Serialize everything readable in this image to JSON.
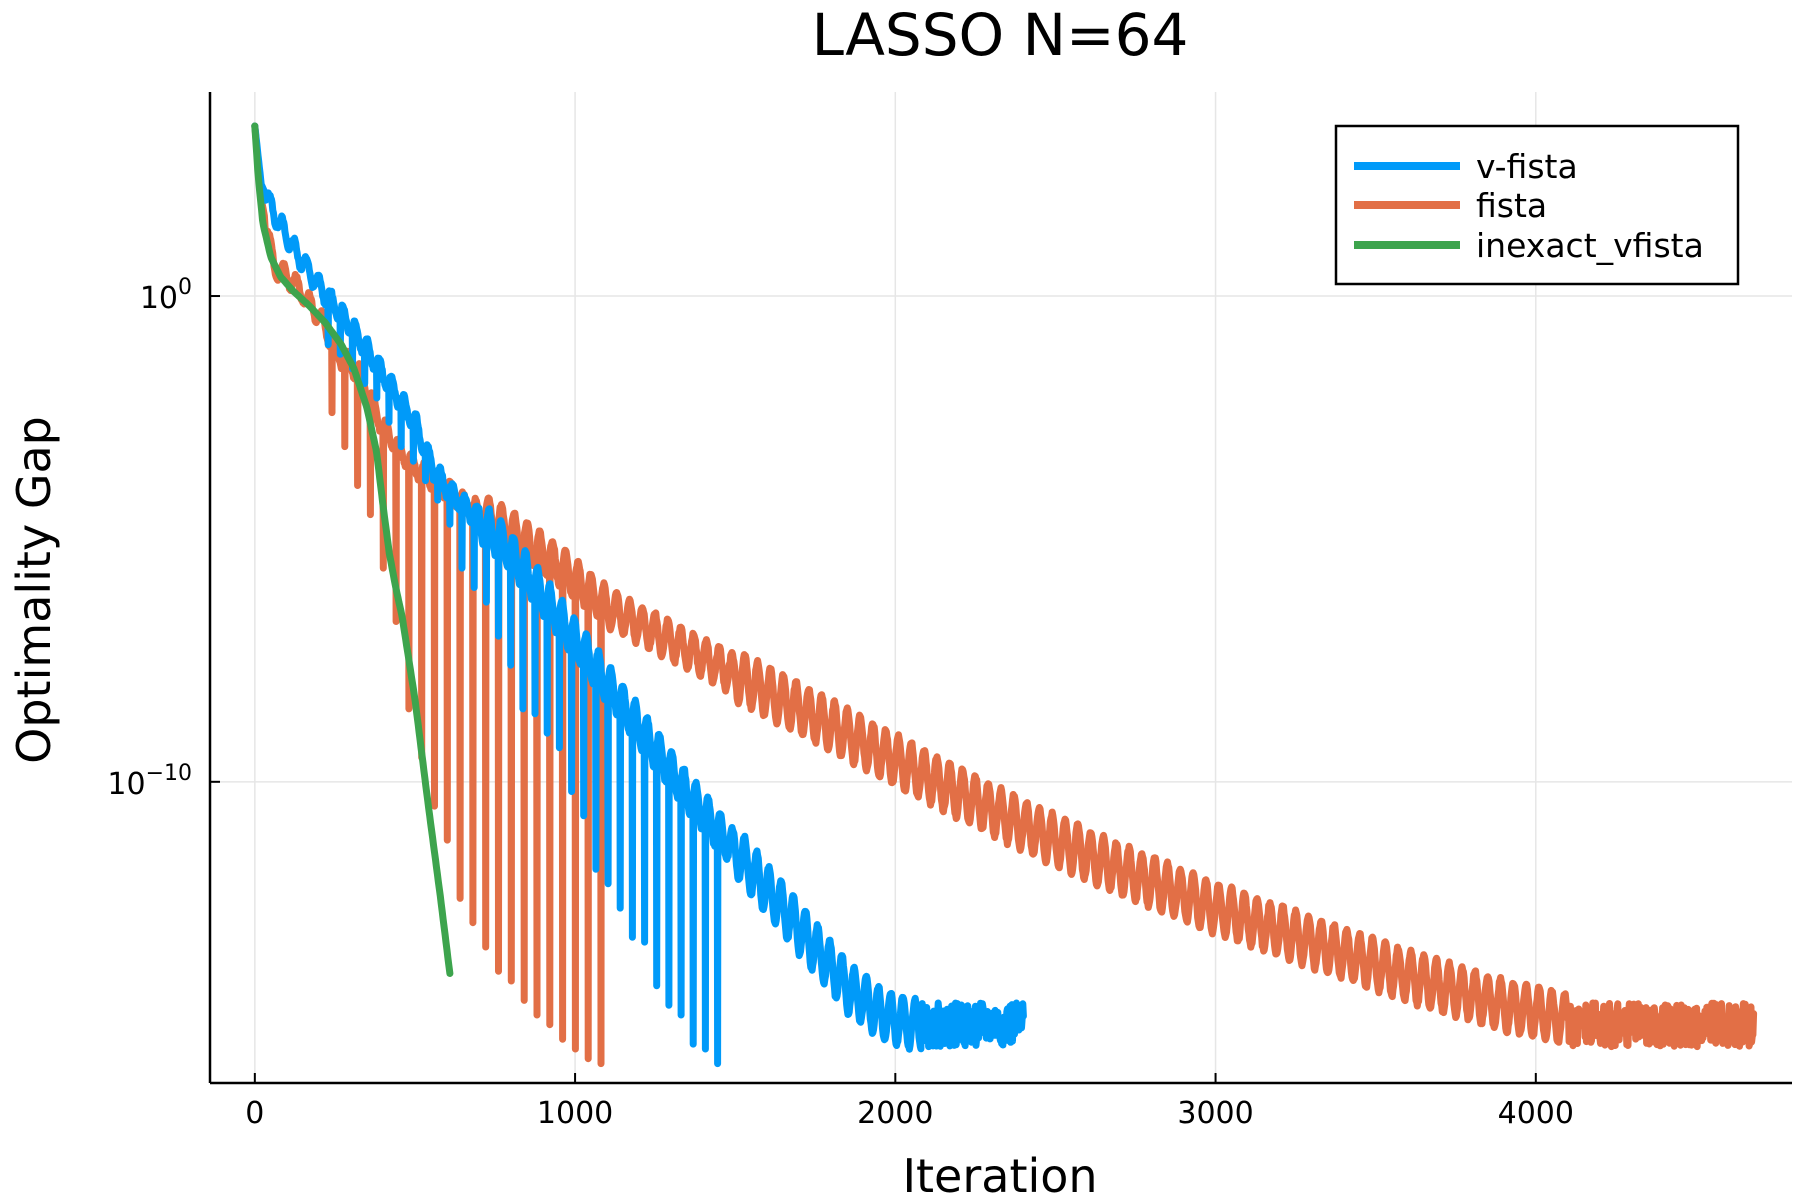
{
  "chart_data": {
    "type": "line",
    "title": "LASSO N=64",
    "xlabel": "Iteration",
    "ylabel": "Optimality Gap",
    "y_scale": "log",
    "xlim": [
      -140,
      4800
    ],
    "ylim_log10": [
      -16.2,
      4.2
    ],
    "xticks": [
      {
        "value": 0,
        "label": "0"
      },
      {
        "value": 1000,
        "label": "1000"
      },
      {
        "value": 2000,
        "label": "2000"
      },
      {
        "value": 3000,
        "label": "3000"
      },
      {
        "value": 4000,
        "label": "4000"
      }
    ],
    "yticks": [
      {
        "log10": 0,
        "base": "10",
        "exp": "0"
      },
      {
        "log10": -10,
        "base": "10",
        "exp": "−10"
      }
    ],
    "grid": true,
    "legend_position": "top-right",
    "series": [
      {
        "name": "v-fista",
        "color": "#009af9",
        "oscillating": true,
        "x": [
          0,
          20,
          60,
          120,
          200,
          300,
          400,
          500,
          560,
          620,
          700,
          780,
          860,
          960,
          1060,
          1160,
          1260,
          1360,
          1460,
          1560,
          1660,
          1760,
          1860,
          1960,
          2060,
          2160,
          2260,
          2400
        ],
        "log10_y": [
          3.5,
          2.3,
          1.7,
          1.0,
          0.2,
          -0.6,
          -1.6,
          -2.6,
          -3.6,
          -4.1,
          -4.6,
          -5.1,
          -5.8,
          -6.7,
          -7.6,
          -8.5,
          -9.4,
          -10.3,
          -11.1,
          -11.9,
          -12.7,
          -13.5,
          -14.3,
          -14.8,
          -15.0,
          -15.0,
          -15.0,
          -15.0
        ],
        "dips_log10": [
          -1,
          -1.2,
          -1.5,
          -1.8,
          -2.1,
          -2.6,
          -3.1,
          -3.4,
          -3.8,
          -4.2,
          -4.7,
          -5.6,
          -6.0,
          -6.3,
          -7.0,
          -7.6,
          -8.5,
          -8.6,
          -9.0,
          -9.3,
          -10.2,
          -10.7,
          -11.8,
          -12.1,
          -12.6,
          -13.2,
          -13.3,
          -14.2,
          -14.6,
          -14.8,
          -15.4,
          -15.5,
          -15.8
        ]
      },
      {
        "name": "fista",
        "color": "#e26f46",
        "oscillating": true,
        "x": [
          0,
          20,
          60,
          120,
          200,
          260,
          330,
          400,
          480,
          560,
          640,
          740,
          840,
          960,
          1100,
          1300,
          1500,
          1700,
          1900,
          2100,
          2400,
          2700,
          3000,
          3300,
          3600,
          3900,
          4100,
          4300,
          4680
        ],
        "log10_y": [
          3.5,
          2.0,
          0.6,
          0.3,
          -0.4,
          -1.2,
          -1.6,
          -2.7,
          -3.4,
          -3.8,
          -4.2,
          -4.6,
          -5.0,
          -5.6,
          -6.4,
          -7.1,
          -7.8,
          -8.5,
          -9.2,
          -9.9,
          -10.9,
          -11.8,
          -12.6,
          -13.3,
          -14.0,
          -14.6,
          -14.9,
          -15.0,
          -15.0
        ],
        "dips_log10": [
          -2.4,
          -3.1,
          -3.9,
          -4.5,
          -5.6,
          -6.7,
          -8.5,
          -9.5,
          -10.5,
          -11.2,
          -12.4,
          -12.9,
          -13.4,
          -13.9,
          -14.1,
          -14.5,
          -14.8,
          -15.0,
          -15.3,
          -15.5,
          -15.7,
          -15.8
        ]
      },
      {
        "name": "inexact_vfista",
        "color": "#3da44d",
        "oscillating": false,
        "x": [
          0,
          10,
          25,
          50,
          80,
          120,
          170,
          220,
          270,
          310,
          350,
          380,
          400,
          420,
          440,
          460,
          500,
          540,
          580,
          610
        ],
        "log10_y": [
          3.5,
          2.5,
          1.5,
          0.8,
          0.4,
          0.1,
          -0.2,
          -0.55,
          -1.0,
          -1.5,
          -2.3,
          -3.2,
          -4.3,
          -5.3,
          -6.0,
          -6.6,
          -8.3,
          -10.4,
          -12.4,
          -14.0
        ]
      }
    ]
  }
}
